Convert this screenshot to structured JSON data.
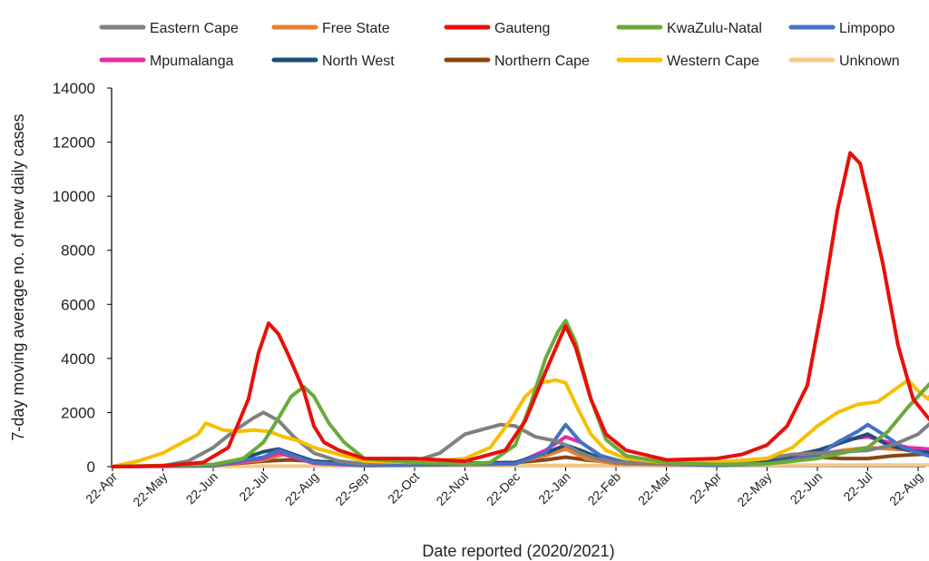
{
  "chart_data": {
    "type": "line",
    "xlabel": "Date reported (2020/2021)",
    "ylabel": "7-day moving average no. of new daily cases",
    "ylim": [
      0,
      14000
    ],
    "yticks": [
      0,
      2000,
      4000,
      6000,
      8000,
      10000,
      12000,
      14000
    ],
    "x_tick_labels": [
      "22-Apr",
      "22-May",
      "22-Jun",
      "22-Jul",
      "22-Aug",
      "22-Sep",
      "22-Oct",
      "22-Nov",
      "22-Dec",
      "22-Jan",
      "22-Feb",
      "22-Mar",
      "22-Apr",
      "22-May",
      "22-Jun",
      "22-Jul",
      "22-Aug"
    ],
    "grid": false,
    "legend_position": "top",
    "series": [
      {
        "name": "Eastern Cape",
        "color": "#808080",
        "points": [
          [
            0,
            0
          ],
          [
            1,
            30
          ],
          [
            1.5,
            200
          ],
          [
            2,
            700
          ],
          [
            2.4,
            1300
          ],
          [
            2.8,
            1800
          ],
          [
            3,
            2000
          ],
          [
            3.3,
            1700
          ],
          [
            3.6,
            1100
          ],
          [
            4,
            500
          ],
          [
            4.5,
            200
          ],
          [
            5,
            100
          ],
          [
            6,
            200
          ],
          [
            6.5,
            500
          ],
          [
            7,
            1200
          ],
          [
            7.3,
            1350
          ],
          [
            7.7,
            1550
          ],
          [
            8,
            1500
          ],
          [
            8.4,
            1100
          ],
          [
            8.8,
            950
          ],
          [
            9,
            800
          ],
          [
            9.3,
            500
          ],
          [
            9.6,
            300
          ],
          [
            10,
            150
          ],
          [
            11,
            100
          ],
          [
            12,
            100
          ],
          [
            13,
            300
          ],
          [
            13.5,
            450
          ],
          [
            14,
            500
          ],
          [
            14.5,
            550
          ],
          [
            15,
            600
          ],
          [
            15.5,
            800
          ],
          [
            16,
            1200
          ],
          [
            16.3,
            1700
          ],
          [
            16.6,
            1550
          ]
        ]
      },
      {
        "name": "Free State",
        "color": "#E87E2E",
        "points": [
          [
            0,
            0
          ],
          [
            2,
            50
          ],
          [
            3,
            250
          ],
          [
            3.4,
            450
          ],
          [
            3.7,
            300
          ],
          [
            4,
            150
          ],
          [
            5,
            60
          ],
          [
            8,
            150
          ],
          [
            8.6,
            400
          ],
          [
            9,
            650
          ],
          [
            9.4,
            300
          ],
          [
            10,
            100
          ],
          [
            12,
            80
          ],
          [
            13,
            250
          ],
          [
            14,
            450
          ],
          [
            14.5,
            600
          ],
          [
            15,
            700
          ],
          [
            15.5,
            650
          ],
          [
            16,
            600
          ],
          [
            16.6,
            500
          ]
        ]
      },
      {
        "name": "Gauteng",
        "color": "#E8100A",
        "points": [
          [
            0,
            0
          ],
          [
            1,
            30
          ],
          [
            1.8,
            150
          ],
          [
            2.3,
            700
          ],
          [
            2.7,
            2500
          ],
          [
            2.9,
            4200
          ],
          [
            3.1,
            5300
          ],
          [
            3.3,
            4900
          ],
          [
            3.5,
            4100
          ],
          [
            3.8,
            2800
          ],
          [
            4,
            1500
          ],
          [
            4.2,
            900
          ],
          [
            4.5,
            600
          ],
          [
            5,
            300
          ],
          [
            6,
            300
          ],
          [
            7,
            200
          ],
          [
            7.8,
            600
          ],
          [
            8.2,
            1700
          ],
          [
            8.6,
            3500
          ],
          [
            8.9,
            4800
          ],
          [
            9,
            5200
          ],
          [
            9.2,
            4400
          ],
          [
            9.5,
            2500
          ],
          [
            9.8,
            1200
          ],
          [
            10.2,
            600
          ],
          [
            11,
            250
          ],
          [
            12,
            300
          ],
          [
            12.5,
            450
          ],
          [
            13,
            800
          ],
          [
            13.4,
            1500
          ],
          [
            13.8,
            3000
          ],
          [
            14.1,
            6000
          ],
          [
            14.4,
            9500
          ],
          [
            14.65,
            11600
          ],
          [
            14.85,
            11200
          ],
          [
            15,
            10000
          ],
          [
            15.3,
            7500
          ],
          [
            15.6,
            4500
          ],
          [
            15.9,
            2500
          ],
          [
            16.2,
            1800
          ],
          [
            16.5,
            1200
          ],
          [
            16.7,
            800
          ]
        ]
      },
      {
        "name": "KwaZulu-Natal",
        "color": "#6AAA3A",
        "points": [
          [
            0,
            0
          ],
          [
            2,
            80
          ],
          [
            2.6,
            300
          ],
          [
            3,
            900
          ],
          [
            3.3,
            1800
          ],
          [
            3.55,
            2600
          ],
          [
            3.8,
            2950
          ],
          [
            4,
            2600
          ],
          [
            4.3,
            1600
          ],
          [
            4.6,
            900
          ],
          [
            5,
            300
          ],
          [
            6,
            150
          ],
          [
            7,
            100
          ],
          [
            7.5,
            150
          ],
          [
            8,
            800
          ],
          [
            8.3,
            2300
          ],
          [
            8.6,
            4000
          ],
          [
            8.85,
            5000
          ],
          [
            9,
            5400
          ],
          [
            9.2,
            4600
          ],
          [
            9.5,
            2500
          ],
          [
            9.8,
            1000
          ],
          [
            10.2,
            400
          ],
          [
            11,
            150
          ],
          [
            12,
            80
          ],
          [
            13,
            100
          ],
          [
            14,
            300
          ],
          [
            14.5,
            500
          ],
          [
            15,
            700
          ],
          [
            15.4,
            1300
          ],
          [
            15.8,
            2200
          ],
          [
            16.2,
            3000
          ],
          [
            16.45,
            3500
          ],
          [
            16.7,
            3100
          ]
        ]
      },
      {
        "name": "Limpopo",
        "color": "#4472C4",
        "points": [
          [
            0,
            0
          ],
          [
            2,
            40
          ],
          [
            3,
            350
          ],
          [
            3.3,
            600
          ],
          [
            3.6,
            400
          ],
          [
            4,
            150
          ],
          [
            5,
            40
          ],
          [
            8,
            100
          ],
          [
            8.6,
            500
          ],
          [
            9,
            1550
          ],
          [
            9.3,
            900
          ],
          [
            9.7,
            400
          ],
          [
            10.2,
            150
          ],
          [
            12,
            50
          ],
          [
            13,
            100
          ],
          [
            14,
            400
          ],
          [
            14.4,
            900
          ],
          [
            14.8,
            1300
          ],
          [
            15,
            1550
          ],
          [
            15.3,
            1200
          ],
          [
            15.7,
            700
          ],
          [
            16.2,
            400
          ],
          [
            16.6,
            250
          ]
        ]
      },
      {
        "name": "Mpumalanga",
        "color": "#E62BA8",
        "points": [
          [
            0,
            0
          ],
          [
            2,
            30
          ],
          [
            3,
            300
          ],
          [
            3.3,
            500
          ],
          [
            3.6,
            350
          ],
          [
            4,
            120
          ],
          [
            5,
            40
          ],
          [
            8,
            100
          ],
          [
            8.6,
            600
          ],
          [
            9,
            1100
          ],
          [
            9.3,
            900
          ],
          [
            9.7,
            400
          ],
          [
            10.2,
            120
          ],
          [
            12,
            50
          ],
          [
            13,
            100
          ],
          [
            14,
            500
          ],
          [
            14.6,
            1000
          ],
          [
            15,
            1100
          ],
          [
            15.4,
            900
          ],
          [
            15.8,
            700
          ],
          [
            16.2,
            650
          ],
          [
            16.6,
            600
          ]
        ]
      },
      {
        "name": "North West",
        "color": "#1F4E79",
        "points": [
          [
            0,
            0
          ],
          [
            2,
            60
          ],
          [
            2.5,
            250
          ],
          [
            3,
            550
          ],
          [
            3.3,
            650
          ],
          [
            3.6,
            450
          ],
          [
            4,
            200
          ],
          [
            5,
            80
          ],
          [
            8,
            150
          ],
          [
            8.6,
            500
          ],
          [
            9,
            800
          ],
          [
            9.3,
            600
          ],
          [
            9.7,
            300
          ],
          [
            10.2,
            150
          ],
          [
            12,
            100
          ],
          [
            13,
            200
          ],
          [
            14,
            600
          ],
          [
            14.5,
            900
          ],
          [
            15,
            1200
          ],
          [
            15.4,
            800
          ],
          [
            15.8,
            600
          ],
          [
            16.3,
            500
          ],
          [
            16.7,
            450
          ]
        ]
      },
      {
        "name": "Northern Cape",
        "color": "#8B4513",
        "points": [
          [
            0,
            0
          ],
          [
            2,
            50
          ],
          [
            3,
            200
          ],
          [
            3.5,
            250
          ],
          [
            4,
            200
          ],
          [
            5,
            100
          ],
          [
            7,
            120
          ],
          [
            8,
            150
          ],
          [
            8.6,
            250
          ],
          [
            9,
            350
          ],
          [
            9.4,
            250
          ],
          [
            10,
            150
          ],
          [
            12,
            150
          ],
          [
            13,
            300
          ],
          [
            13.5,
            400
          ],
          [
            14,
            350
          ],
          [
            14.5,
            300
          ],
          [
            15,
            300
          ],
          [
            15.5,
            400
          ],
          [
            16,
            450
          ],
          [
            16.7,
            500
          ]
        ]
      },
      {
        "name": "Western Cape",
        "color": "#F5C000",
        "points": [
          [
            0,
            0
          ],
          [
            0.5,
            200
          ],
          [
            1,
            500
          ],
          [
            1.4,
            900
          ],
          [
            1.7,
            1200
          ],
          [
            1.85,
            1600
          ],
          [
            2,
            1500
          ],
          [
            2.2,
            1350
          ],
          [
            2.5,
            1300
          ],
          [
            2.8,
            1350
          ],
          [
            3.1,
            1300
          ],
          [
            3.4,
            1100
          ],
          [
            3.7,
            950
          ],
          [
            4,
            700
          ],
          [
            4.4,
            500
          ],
          [
            5,
            200
          ],
          [
            6,
            150
          ],
          [
            7,
            300
          ],
          [
            7.5,
            700
          ],
          [
            7.9,
            1700
          ],
          [
            8.2,
            2600
          ],
          [
            8.5,
            3100
          ],
          [
            8.8,
            3200
          ],
          [
            9,
            3100
          ],
          [
            9.2,
            2300
          ],
          [
            9.5,
            1200
          ],
          [
            9.8,
            600
          ],
          [
            10.2,
            300
          ],
          [
            11,
            150
          ],
          [
            12,
            150
          ],
          [
            13,
            300
          ],
          [
            13.5,
            700
          ],
          [
            14,
            1500
          ],
          [
            14.4,
            2000
          ],
          [
            14.8,
            2300
          ],
          [
            15.2,
            2400
          ],
          [
            15.5,
            2800
          ],
          [
            15.8,
            3200
          ],
          [
            16,
            2800
          ],
          [
            16.2,
            2500
          ],
          [
            16.45,
            3200
          ],
          [
            16.7,
            2200
          ]
        ]
      },
      {
        "name": "Unknown",
        "color": "#F5C98A",
        "points": [
          [
            0,
            0
          ],
          [
            4,
            20
          ],
          [
            8,
            40
          ],
          [
            12,
            50
          ],
          [
            16.7,
            60
          ]
        ]
      }
    ]
  }
}
